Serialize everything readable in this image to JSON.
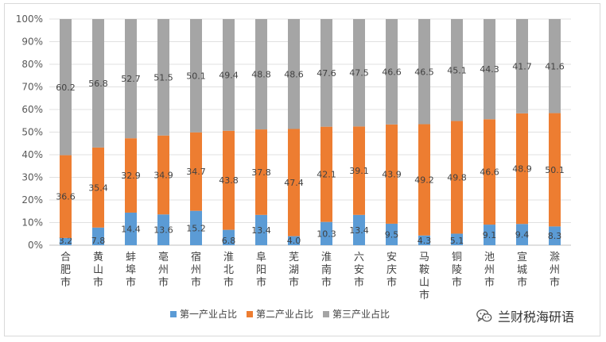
{
  "chart_data": {
    "type": "bar",
    "stacked": true,
    "percent_stacked": true,
    "categories": [
      "合肥市",
      "黄山市",
      "蚌埠市",
      "亳州市",
      "宿州市",
      "淮北市",
      "阜阳市",
      "芜湖市",
      "淮南市",
      "六安市",
      "安庆市",
      "马鞍山市",
      "铜陵市",
      "池州市",
      "宣城市",
      "滁州市"
    ],
    "series": [
      {
        "name": "第一产业占比",
        "color": "#5b9bd5",
        "values": [
          3.2,
          7.8,
          14.4,
          13.6,
          15.2,
          6.8,
          13.4,
          4.0,
          10.3,
          13.4,
          9.5,
          4.3,
          5.1,
          9.1,
          9.4,
          8.3
        ]
      },
      {
        "name": "第二产业占比",
        "color": "#ed7d31",
        "values": [
          36.6,
          35.4,
          32.9,
          34.9,
          34.7,
          43.8,
          37.8,
          47.4,
          42.1,
          39.1,
          43.9,
          49.2,
          49.8,
          46.6,
          48.9,
          50.1
        ]
      },
      {
        "name": "第三产业占比",
        "color": "#a5a5a5",
        "values": [
          60.2,
          56.8,
          52.7,
          51.5,
          50.1,
          49.4,
          48.8,
          48.6,
          47.6,
          47.5,
          46.6,
          46.5,
          45.1,
          44.3,
          41.7,
          41.6
        ]
      }
    ],
    "y_ticks": [
      "0%",
      "10%",
      "20%",
      "30%",
      "40%",
      "50%",
      "60%",
      "70%",
      "80%",
      "90%",
      "100%"
    ],
    "ylim": [
      0,
      100
    ],
    "grid": true,
    "legend": "bottom"
  },
  "watermark": {
    "text": "兰财税海研语"
  }
}
